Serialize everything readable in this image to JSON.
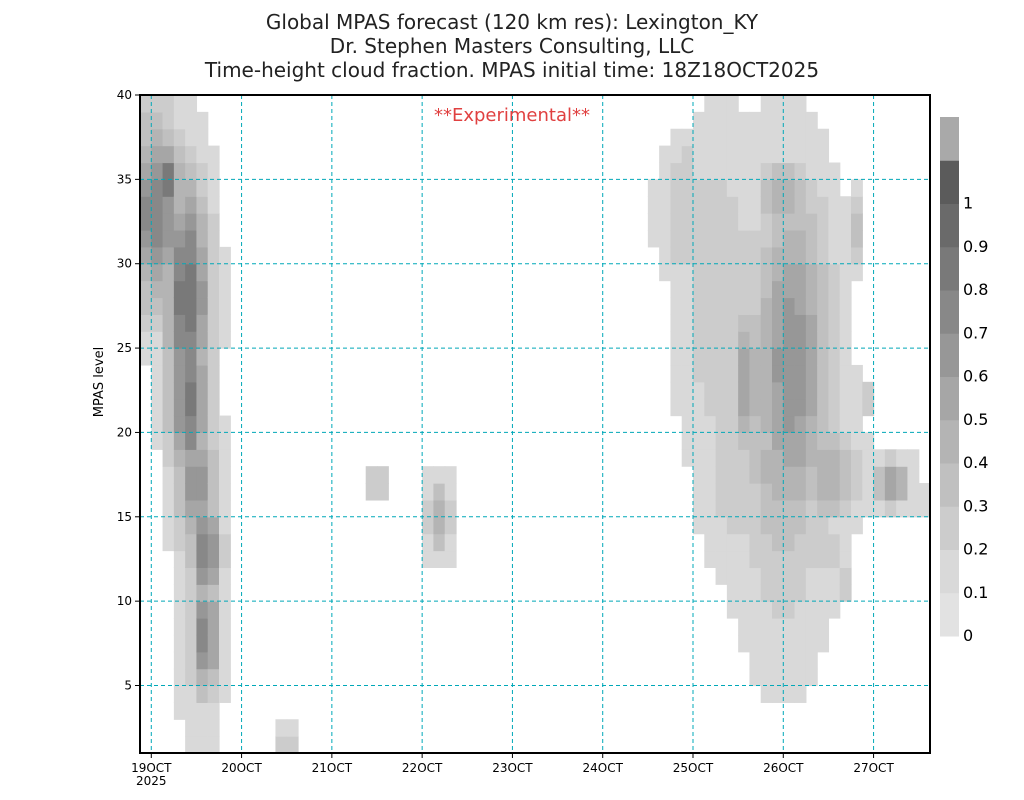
{
  "title": {
    "line1": "Global MPAS forecast (120 km res): Lexington_KY",
    "line2": "Dr. Stephen Masters Consulting, LLC",
    "line3": "Time-height cloud fraction.   MPAS initial time: 18Z18OCT2025"
  },
  "watermark": "**Experimental**",
  "colors": {
    "grid": "#00a8b8",
    "watermark": "#e04040",
    "levels": [
      "#e2e2e2",
      "#d9d9d9",
      "#cccccc",
      "#c0c0c0",
      "#b4b4b4",
      "#a6a6a6",
      "#979797",
      "#888888",
      "#797979",
      "#6a6a6a",
      "#5b5b5b",
      "#a9a9a9"
    ]
  },
  "chart_data": {
    "type": "heatmap",
    "ylabel": "MPAS level",
    "ylim": [
      1,
      40
    ],
    "yticks": [
      5,
      10,
      15,
      20,
      25,
      30,
      35,
      40
    ],
    "xlim": [
      18.875,
      27.625
    ],
    "xticks": [
      {
        "day": 19,
        "label": "19OCT",
        "sublabel": "2025"
      },
      {
        "day": 20,
        "label": "20OCT"
      },
      {
        "day": 21,
        "label": "21OCT"
      },
      {
        "day": 22,
        "label": "22OCT"
      },
      {
        "day": 23,
        "label": "23OCT"
      },
      {
        "day": 24,
        "label": "24OCT"
      },
      {
        "day": 25,
        "label": "25OCT"
      },
      {
        "day": 26,
        "label": "26OCT"
      },
      {
        "day": 27,
        "label": "27OCT"
      }
    ],
    "grid": true,
    "colorbar": {
      "labels": [
        "0",
        "0.1",
        "0.2",
        "0.3",
        "0.4",
        "0.5",
        "0.6",
        "0.7",
        "0.8",
        "0.9",
        "1"
      ],
      "placement": "right"
    },
    "cloud_blobs": [
      {
        "t": 19.05,
        "z": 33.0,
        "st": 0.22,
        "sz": 4.0,
        "a": 0.75
      },
      {
        "t": 19.18,
        "z": 35.0,
        "st": 0.12,
        "sz": 1.5,
        "a": 0.8
      },
      {
        "t": 19.4,
        "z": 28.0,
        "st": 0.18,
        "sz": 5.0,
        "a": 0.85
      },
      {
        "t": 19.42,
        "z": 22.0,
        "st": 0.16,
        "sz": 4.0,
        "a": 0.8
      },
      {
        "t": 19.5,
        "z": 17.0,
        "st": 0.17,
        "sz": 3.0,
        "a": 0.6
      },
      {
        "t": 19.6,
        "z": 13.0,
        "st": 0.12,
        "sz": 2.0,
        "a": 0.8
      },
      {
        "t": 19.6,
        "z": 8.0,
        "st": 0.11,
        "sz": 2.5,
        "a": 0.75
      },
      {
        "t": 19.55,
        "z": 11.0,
        "st": 0.18,
        "sz": 6.0,
        "a": 0.3
      },
      {
        "t": 20.5,
        "z": 1.5,
        "st": 0.07,
        "sz": 0.8,
        "a": 0.3
      },
      {
        "t": 21.5,
        "z": 17.0,
        "st": 0.07,
        "sz": 0.8,
        "a": 0.3
      },
      {
        "t": 22.18,
        "z": 15.0,
        "st": 0.1,
        "sz": 1.6,
        "a": 0.45
      },
      {
        "t": 24.9,
        "z": 33.0,
        "st": 0.2,
        "sz": 3.0,
        "a": 0.25
      },
      {
        "t": 24.95,
        "z": 36.0,
        "st": 0.05,
        "sz": 0.7,
        "a": 0.25
      },
      {
        "t": 25.1,
        "z": 34.0,
        "st": 0.05,
        "sz": 0.8,
        "a": 0.35
      },
      {
        "t": 25.3,
        "z": 28.0,
        "st": 0.32,
        "sz": 7.0,
        "a": 0.25
      },
      {
        "t": 25.5,
        "z": 19.0,
        "st": 0.3,
        "sz": 5.0,
        "a": 0.25
      },
      {
        "t": 25.6,
        "z": 23.0,
        "st": 0.12,
        "sz": 3.0,
        "a": 0.55
      },
      {
        "t": 26.0,
        "z": 22.0,
        "st": 0.4,
        "sz": 9.0,
        "a": 0.4
      },
      {
        "t": 26.1,
        "z": 24.0,
        "st": 0.3,
        "sz": 7.0,
        "a": 0.65
      },
      {
        "t": 25.95,
        "z": 18.0,
        "st": 0.28,
        "sz": 4.0,
        "a": 0.4
      },
      {
        "t": 26.15,
        "z": 29.0,
        "st": 0.3,
        "sz": 4.5,
        "a": 0.4
      },
      {
        "t": 26.0,
        "z": 34.0,
        "st": 0.18,
        "sz": 1.5,
        "a": 0.5
      },
      {
        "t": 26.5,
        "z": 17.5,
        "st": 0.25,
        "sz": 2.0,
        "a": 0.45
      },
      {
        "t": 27.2,
        "z": 17.0,
        "st": 0.15,
        "sz": 1.0,
        "a": 0.55
      },
      {
        "t": 26.9,
        "z": 22.0,
        "st": 0.06,
        "sz": 0.8,
        "a": 0.35
      },
      {
        "t": 26.8,
        "z": 32.0,
        "st": 0.07,
        "sz": 1.5,
        "a": 0.3
      },
      {
        "t": 26.5,
        "z": 13.0,
        "st": 0.1,
        "sz": 1.5,
        "a": 0.2
      },
      {
        "t": 27.5,
        "z": 16.0,
        "st": 0.08,
        "sz": 0.8,
        "a": 0.2
      },
      {
        "t": 26.7,
        "z": 11.0,
        "st": 0.05,
        "sz": 0.8,
        "a": 0.2
      }
    ]
  }
}
